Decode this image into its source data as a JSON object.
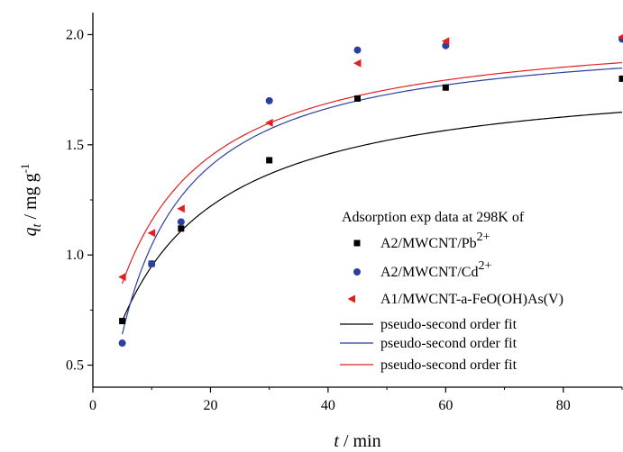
{
  "chart_data": {
    "type": "scatter",
    "x_axis": {
      "label_var": "t",
      "label_unit": " / min",
      "min": 0,
      "max": 90,
      "ticks": [
        0,
        20,
        40,
        60,
        80
      ],
      "tick_labels": [
        "0",
        "20",
        "40",
        "60",
        "80"
      ]
    },
    "y_axis": {
      "label_var": "q",
      "label_sub": "t",
      "label_unit": " / mg g",
      "label_sup": "-1",
      "min": 0.4,
      "max": 2.1,
      "ticks": [
        0.5,
        1.0,
        1.5,
        2.0
      ],
      "tick_labels": [
        "0.5",
        "1.0",
        "1.5",
        "2.0"
      ]
    },
    "legend": {
      "placement": "lower-right",
      "title": "Adsorption exp data at 298K of",
      "entries": [
        {
          "text": "A2/MWCNT/Pb",
          "sup": "2+",
          "kind": "marker",
          "marker": "square",
          "color": "#000000"
        },
        {
          "text": "A2/MWCNT/Cd",
          "sup": "2+",
          "kind": "marker",
          "marker": "circle",
          "color": "#2b3f9e"
        },
        {
          "text": "A1/MWCNT-a-FeO(OH)As(V)",
          "sup": "",
          "kind": "marker",
          "marker": "triangle-left",
          "color": "#e02020"
        },
        {
          "text": "pseudo-second order fit",
          "sup": "",
          "kind": "line",
          "color": "#000000"
        },
        {
          "text": "pseudo-second order fit",
          "sup": "",
          "kind": "line",
          "color": "#2b3f9e"
        },
        {
          "text": "pseudo-second order fit",
          "sup": "",
          "kind": "line",
          "color": "#e02020"
        }
      ]
    },
    "series": [
      {
        "name": "A2/MWCNT/Pb2+",
        "marker": "square",
        "color": "#000000",
        "x": [
          5,
          10,
          15,
          30,
          45,
          60,
          90
        ],
        "y": [
          0.7,
          0.96,
          1.12,
          1.43,
          1.71,
          1.76,
          1.8
        ]
      },
      {
        "name": "A2/MWCNT/Cd2+",
        "marker": "circle",
        "color": "#2b3f9e",
        "x": [
          5,
          10,
          15,
          30,
          45,
          60,
          90
        ],
        "y": [
          0.6,
          0.96,
          1.15,
          1.7,
          1.93,
          1.95,
          1.98
        ]
      },
      {
        "name": "A1/MWCNT-a-FeO(OH)As(V)",
        "marker": "triangle-left",
        "color": "#e02020",
        "x": [
          5,
          10,
          15,
          30,
          45,
          60,
          90
        ],
        "y": [
          0.9,
          1.1,
          1.21,
          1.6,
          1.87,
          1.97,
          1.99
        ]
      }
    ],
    "fits": [
      {
        "name": "pseudo-second order fit",
        "color": "#000000",
        "qe": 1.85,
        "k": 0.048,
        "x0": 5,
        "y0": 0.7
      },
      {
        "name": "pseudo-second order fit",
        "color": "#2b3f9e",
        "qe": 2.02,
        "k": 0.06,
        "x0": 5,
        "y0": 0.64
      },
      {
        "name": "pseudo-second order fit",
        "color": "#e02020",
        "qe": 2.06,
        "k": 0.053,
        "x0": 5,
        "y0": 0.87
      }
    ],
    "grid": false
  }
}
